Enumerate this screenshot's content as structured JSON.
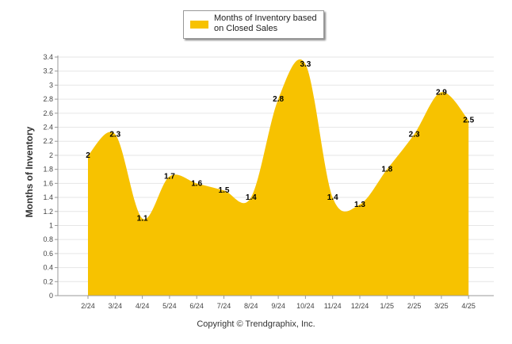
{
  "chart_data": {
    "type": "area",
    "categories": [
      "2/24",
      "3/24",
      "4/24",
      "5/24",
      "6/24",
      "7/24",
      "8/24",
      "9/24",
      "10/24",
      "11/24",
      "12/24",
      "1/25",
      "2/25",
      "3/25",
      "4/25"
    ],
    "series": [
      {
        "name": "Months of Inventory based on Closed Sales",
        "values": [
          2,
          2.3,
          1.1,
          1.7,
          1.6,
          1.5,
          1.4,
          2.8,
          3.3,
          1.4,
          1.3,
          1.8,
          2.3,
          2.9,
          2.5
        ],
        "color": "#f7c200"
      }
    ],
    "data_labels": [
      "2",
      "2.3",
      "1.1",
      "1.7",
      "1.6",
      "1.5",
      "1.4",
      "2.8",
      "3.3",
      "1.4",
      "1.3",
      "1.8",
      "2.3",
      "2.9",
      "2.5"
    ],
    "ylabel": "Months of Inventory",
    "xlabel": "",
    "ylim": [
      0,
      3.4
    ],
    "yticks": [
      "0",
      "0.2",
      "0.4",
      "0.6",
      "0.8",
      "1",
      "1.2",
      "1.4",
      "1.6",
      "1.8",
      "2",
      "2.2",
      "2.4",
      "2.6",
      "2.8",
      "3",
      "3.2",
      "3.4"
    ],
    "grid": true,
    "legend_position": "top-center"
  },
  "legend": {
    "label": "Months of Inventory based on Closed Sales",
    "color": "#f7c200"
  },
  "footer": {
    "copyright": "Copyright © Trendgraphix, Inc."
  }
}
